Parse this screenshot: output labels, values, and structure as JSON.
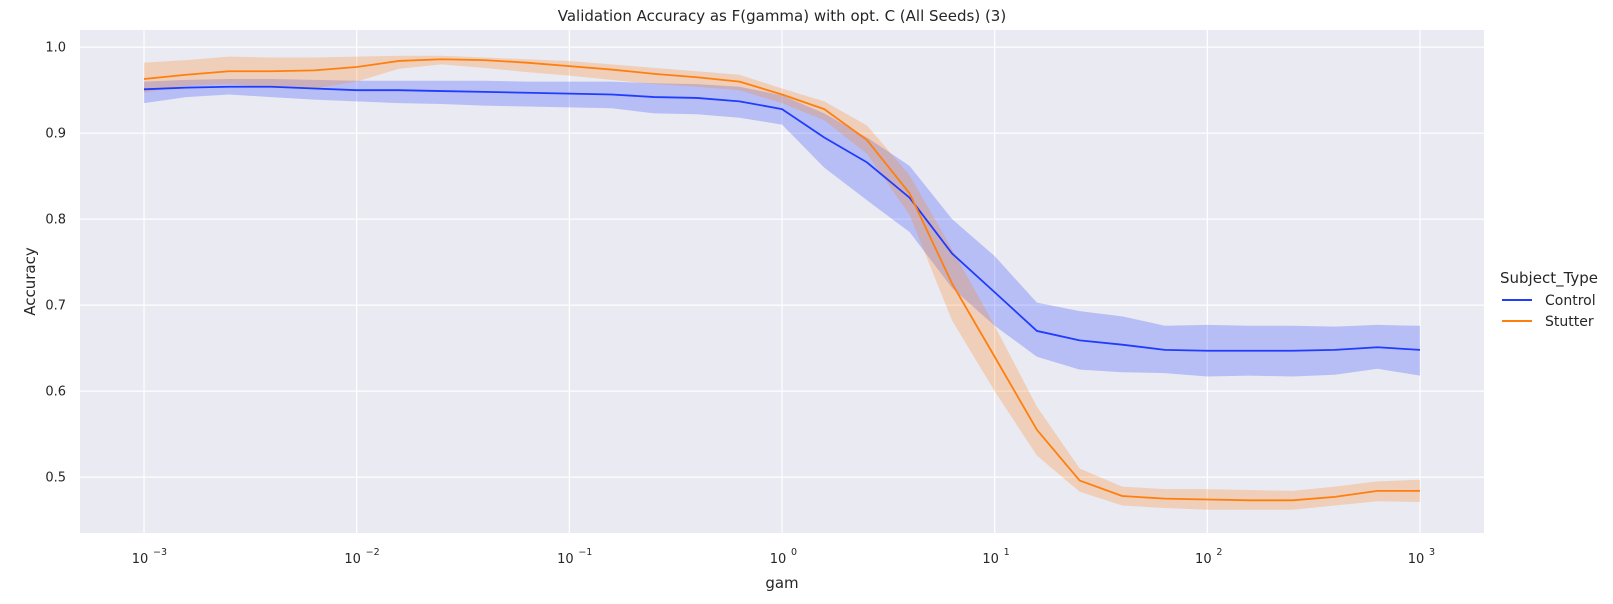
{
  "chart_data": {
    "type": "line",
    "title": "Validation Accuracy as F(gamma) with opt. C (All Seeds) (3)",
    "xlabel": "gam",
    "ylabel": "Accuracy",
    "x_scale": "log",
    "xlim": [
      0.0005,
      2000
    ],
    "ylim": [
      0.435,
      1.02
    ],
    "grid": true,
    "x_ticks": [
      {
        "value": 0.001,
        "base": "10",
        "exp": "−3"
      },
      {
        "value": 0.01,
        "base": "10",
        "exp": "−2"
      },
      {
        "value": 0.1,
        "base": "10",
        "exp": "−1"
      },
      {
        "value": 1,
        "base": "10",
        "exp": "0"
      },
      {
        "value": 10,
        "base": "10",
        "exp": "1"
      },
      {
        "value": 100,
        "base": "10",
        "exp": "2"
      },
      {
        "value": 1000,
        "base": "10",
        "exp": "3"
      }
    ],
    "y_ticks": [
      {
        "value": 0.5,
        "label": "0.5"
      },
      {
        "value": 0.6,
        "label": "0.6"
      },
      {
        "value": 0.7,
        "label": "0.7"
      },
      {
        "value": 0.8,
        "label": "0.8"
      },
      {
        "value": 0.9,
        "label": "0.9"
      },
      {
        "value": 1.0,
        "label": "1.0"
      }
    ],
    "legend": {
      "title": "Subject_Type",
      "position": "right"
    },
    "x": [
      0.001,
      0.00158,
      0.00251,
      0.00398,
      0.00631,
      0.01,
      0.0158,
      0.0251,
      0.0398,
      0.0631,
      0.1,
      0.158,
      0.251,
      0.398,
      0.631,
      1,
      1.58,
      2.51,
      3.98,
      6.31,
      10,
      15.8,
      25.1,
      39.8,
      63.1,
      100,
      158,
      251,
      398,
      631,
      1000
    ],
    "series": [
      {
        "name": "Control",
        "color": "#1f3cff",
        "values": [
          0.951,
          0.953,
          0.954,
          0.954,
          0.952,
          0.95,
          0.95,
          0.949,
          0.948,
          0.947,
          0.946,
          0.945,
          0.942,
          0.941,
          0.937,
          0.928,
          0.895,
          0.866,
          0.825,
          0.76,
          0.715,
          0.67,
          0.659,
          0.654,
          0.648,
          0.647,
          0.647,
          0.647,
          0.648,
          0.651,
          0.648
        ],
        "lower": [
          0.935,
          0.942,
          0.945,
          0.942,
          0.939,
          0.937,
          0.935,
          0.934,
          0.932,
          0.931,
          0.93,
          0.929,
          0.923,
          0.922,
          0.918,
          0.91,
          0.86,
          0.822,
          0.785,
          0.72,
          0.676,
          0.64,
          0.625,
          0.622,
          0.621,
          0.617,
          0.618,
          0.617,
          0.619,
          0.626,
          0.618
        ],
        "upper": [
          0.96,
          0.962,
          0.963,
          0.963,
          0.962,
          0.961,
          0.961,
          0.961,
          0.961,
          0.96,
          0.96,
          0.96,
          0.958,
          0.957,
          0.954,
          0.944,
          0.923,
          0.895,
          0.862,
          0.8,
          0.757,
          0.703,
          0.693,
          0.687,
          0.676,
          0.677,
          0.676,
          0.676,
          0.675,
          0.677,
          0.676
        ]
      },
      {
        "name": "Stutter",
        "color": "#ff7f0e",
        "values": [
          0.963,
          0.968,
          0.972,
          0.972,
          0.973,
          0.977,
          0.984,
          0.986,
          0.985,
          0.982,
          0.978,
          0.974,
          0.969,
          0.965,
          0.96,
          0.945,
          0.928,
          0.892,
          0.83,
          0.725,
          0.64,
          0.555,
          0.496,
          0.478,
          0.475,
          0.474,
          0.473,
          0.473,
          0.477,
          0.484,
          0.484
        ],
        "lower": [
          0.947,
          0.955,
          0.957,
          0.953,
          0.952,
          0.96,
          0.975,
          0.98,
          0.976,
          0.971,
          0.967,
          0.962,
          0.957,
          0.954,
          0.95,
          0.935,
          0.915,
          0.876,
          0.805,
          0.682,
          0.6,
          0.525,
          0.483,
          0.467,
          0.464,
          0.462,
          0.462,
          0.462,
          0.467,
          0.472,
          0.471
        ],
        "upper": [
          0.982,
          0.985,
          0.989,
          0.988,
          0.988,
          0.989,
          0.99,
          0.99,
          0.988,
          0.986,
          0.984,
          0.98,
          0.976,
          0.972,
          0.968,
          0.952,
          0.937,
          0.909,
          0.851,
          0.765,
          0.676,
          0.582,
          0.51,
          0.489,
          0.486,
          0.486,
          0.485,
          0.484,
          0.489,
          0.495,
          0.497
        ]
      }
    ]
  }
}
